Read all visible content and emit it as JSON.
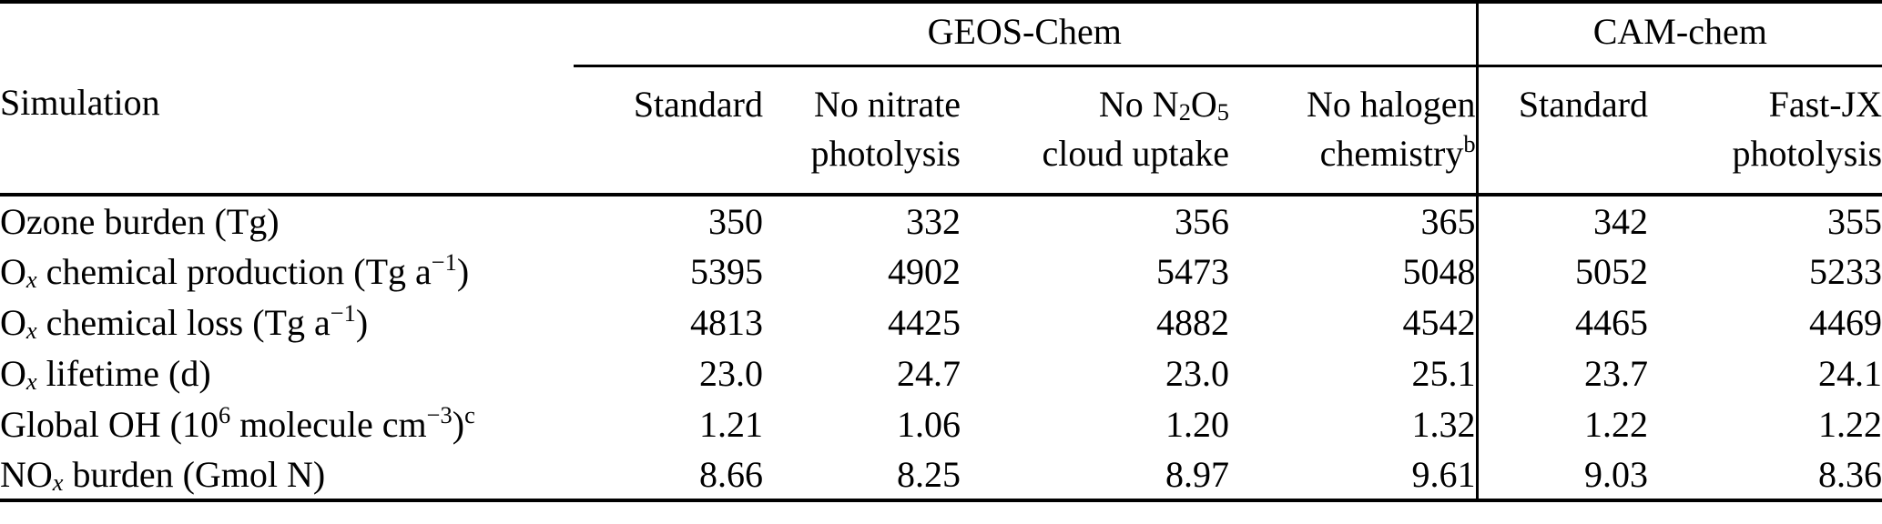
{
  "table": {
    "col_groups": [
      {
        "label": "GEOS-Chem"
      },
      {
        "label": "CAM-chem"
      }
    ],
    "row_header": "Simulation",
    "columns": [
      {
        "rich": [
          {
            "t": "Standard"
          }
        ]
      },
      {
        "rich": [
          {
            "t": "No nitrate"
          },
          {
            "br": true
          },
          {
            "t": "photolysis"
          }
        ]
      },
      {
        "rich": [
          {
            "t": "No N"
          },
          {
            "t": "2",
            "s": "sub"
          },
          {
            "t": "O"
          },
          {
            "t": "5",
            "s": "sub"
          },
          {
            "br": true
          },
          {
            "t": "cloud uptake"
          }
        ]
      },
      {
        "rich": [
          {
            "t": "No halogen"
          },
          {
            "br": true
          },
          {
            "t": "chemistry"
          },
          {
            "t": "b",
            "s": "sup"
          }
        ]
      },
      {
        "rich": [
          {
            "t": "Standard"
          }
        ]
      },
      {
        "rich": [
          {
            "t": "Fast-JX"
          },
          {
            "br": true
          },
          {
            "t": "photolysis"
          }
        ]
      }
    ],
    "rows": [
      {
        "label": [
          {
            "t": "Ozone burden (Tg)"
          }
        ],
        "values": [
          "350",
          "332",
          "356",
          "365",
          "342",
          "355"
        ]
      },
      {
        "label": [
          {
            "t": "O"
          },
          {
            "t": "x",
            "s": "subi"
          },
          {
            "t": " chemical production (Tg a"
          },
          {
            "t": "−1",
            "s": "sup"
          },
          {
            "t": ")"
          }
        ],
        "values": [
          "5395",
          "4902",
          "5473",
          "5048",
          "5052",
          "5233"
        ]
      },
      {
        "label": [
          {
            "t": "O"
          },
          {
            "t": "x",
            "s": "subi"
          },
          {
            "t": " chemical loss (Tg a"
          },
          {
            "t": "−1",
            "s": "sup"
          },
          {
            "t": ")"
          }
        ],
        "values": [
          "4813",
          "4425",
          "4882",
          "4542",
          "4465",
          "4469"
        ]
      },
      {
        "label": [
          {
            "t": "O"
          },
          {
            "t": "x",
            "s": "subi"
          },
          {
            "t": " lifetime (d)"
          }
        ],
        "values": [
          "23.0",
          "24.7",
          "23.0",
          "25.1",
          "23.7",
          "24.1"
        ]
      },
      {
        "label": [
          {
            "t": "Global OH (10"
          },
          {
            "t": "6",
            "s": "sup"
          },
          {
            "t": " molecule cm"
          },
          {
            "t": "−3",
            "s": "sup"
          },
          {
            "t": ")"
          },
          {
            "t": "c",
            "s": "sup"
          }
        ],
        "values": [
          "1.21",
          "1.06",
          "1.20",
          "1.32",
          "1.22",
          "1.22"
        ]
      },
      {
        "label": [
          {
            "t": "NO"
          },
          {
            "t": "x",
            "s": "subi"
          },
          {
            "t": " burden (Gmol N)"
          }
        ],
        "values": [
          "8.66",
          "8.25",
          "8.97",
          "9.61",
          "9.03",
          "8.36"
        ]
      }
    ],
    "colors": {
      "text": "#000000",
      "rule": "#000000",
      "background": "#ffffff"
    }
  }
}
